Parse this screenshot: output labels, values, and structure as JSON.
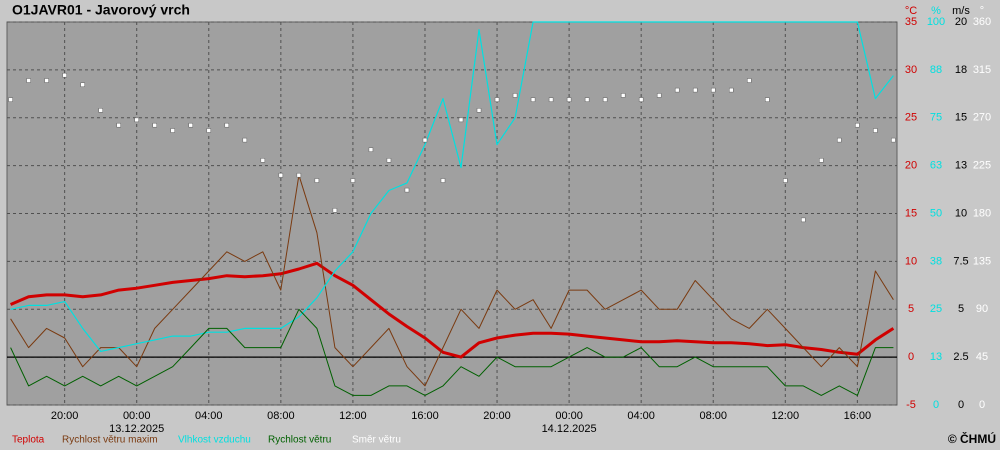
{
  "chart_data": {
    "type": "line",
    "title": "O1JAVR01 - Javorový vrch",
    "copyright": "© ČHMÚ",
    "x": [
      -7,
      -6,
      -5,
      -4,
      -3,
      -2,
      -1,
      0,
      1,
      2,
      3,
      4,
      5,
      6,
      7,
      8,
      9,
      10,
      11,
      12,
      13,
      14,
      15,
      16,
      17,
      18,
      19,
      20,
      21,
      22,
      23,
      24,
      25,
      26,
      27,
      28,
      29,
      30,
      31,
      32,
      33,
      34,
      35,
      36,
      37,
      38,
      39,
      40,
      41,
      42
    ],
    "xlim": [
      -7.2,
      42.2
    ],
    "xticks": [
      {
        "value": -4,
        "label": "20:00"
      },
      {
        "value": 0,
        "label": "00:00"
      },
      {
        "value": 4,
        "label": "04:00"
      },
      {
        "value": 8,
        "label": "08:00"
      },
      {
        "value": 12,
        "label": "12:00"
      },
      {
        "value": 16,
        "label": "16:00"
      },
      {
        "value": 20,
        "label": "20:00"
      },
      {
        "value": 24,
        "label": "00:00"
      },
      {
        "value": 28,
        "label": "04:00"
      },
      {
        "value": 32,
        "label": "08:00"
      },
      {
        "value": 36,
        "label": "12:00"
      },
      {
        "value": 40,
        "label": "16:00"
      }
    ],
    "date_labels": [
      {
        "value": 0,
        "label": "13.12.2025"
      },
      {
        "value": 24,
        "label": "14.12.2025"
      }
    ],
    "ylabel": "°C",
    "ylim": [
      -5,
      35
    ],
    "yticks": [
      35,
      30,
      25,
      20,
      15,
      10,
      5,
      0,
      -5
    ],
    "ycolor": "#d00000",
    "y2label": "%",
    "y2lim": [
      0,
      100
    ],
    "y2ticks": [
      100,
      {
        "value": 87.5,
        "label": "88"
      },
      75,
      {
        "value": 62.5,
        "label": "63"
      },
      50,
      {
        "value": 37.5,
        "label": "38"
      },
      25,
      {
        "value": 12.5,
        "label": "13"
      },
      0
    ],
    "y2color": "#00e0e0",
    "y3label": "m/s",
    "y3lim": [
      0,
      20
    ],
    "y3ticks": [
      20,
      {
        "value": 17.5,
        "label": "18"
      },
      15,
      {
        "value": 12.5,
        "label": "13"
      },
      10,
      7.5,
      5,
      2.5,
      0
    ],
    "y3color": "#000000",
    "y4label": "°",
    "y4lim": [
      0,
      360
    ],
    "y4ticks": [
      360,
      315,
      270,
      225,
      180,
      135,
      90,
      45,
      0
    ],
    "y4color": "#ffffff",
    "grid": true,
    "series": [
      {
        "name": "Teplota",
        "color": "#d00000",
        "axis": "y",
        "style": "line",
        "width": 3,
        "values": [
          5.5,
          6.3,
          6.5,
          6.5,
          6.3,
          6.5,
          7,
          7.2,
          7.5,
          7.8,
          8,
          8.2,
          8.5,
          8.4,
          8.5,
          8.7,
          9.2,
          9.8,
          8.5,
          7.5,
          6,
          4.5,
          3.2,
          2,
          0.5,
          0,
          1.5,
          2,
          2.3,
          2.5,
          2.5,
          2.4,
          2.2,
          2,
          1.8,
          1.6,
          1.6,
          1.7,
          1.6,
          1.5,
          1.5,
          1.4,
          1.2,
          1.3,
          1,
          0.8,
          0.5,
          0.3,
          1.8,
          3
        ]
      },
      {
        "name": "Rychlost větru maxim",
        "color": "#7a3a10",
        "axis": "y3",
        "style": "line",
        "width": 1,
        "values": [
          4.5,
          3,
          4,
          3.5,
          2,
          3,
          3,
          2,
          4,
          5,
          6,
          7,
          8,
          7.5,
          8,
          6,
          12,
          9,
          3,
          2,
          3,
          4,
          2,
          1,
          3,
          5,
          4,
          6,
          5,
          5.5,
          4,
          6,
          6,
          5,
          5.5,
          6,
          5,
          5,
          6.5,
          5.5,
          4.5,
          4,
          5,
          4,
          3,
          2,
          3,
          2,
          7,
          5.5
        ]
      },
      {
        "name": "Vlhkost vzduchu",
        "color": "#00e0e0",
        "axis": "y2",
        "style": "line",
        "width": 1.2,
        "values": [
          25,
          26,
          26,
          27,
          20,
          14,
          15,
          16,
          17,
          18,
          18,
          19,
          19,
          20,
          20,
          20,
          23,
          28,
          35,
          40,
          50,
          56,
          58,
          68,
          80,
          62,
          98,
          68,
          75,
          100,
          100,
          100,
          100,
          100,
          100,
          100,
          100,
          100,
          100,
          100,
          100,
          100,
          100,
          100,
          100,
          100,
          100,
          100,
          80,
          86
        ]
      },
      {
        "name": "Rychlost větru",
        "color": "#006000",
        "axis": "y3",
        "style": "line",
        "width": 1,
        "values": [
          3,
          1,
          1.5,
          1,
          1.5,
          1,
          1.5,
          1,
          1.5,
          2,
          3,
          4,
          4,
          3,
          3,
          3,
          5,
          4,
          1,
          0.5,
          0.5,
          1,
          1,
          0.5,
          1,
          2,
          1.5,
          2.5,
          2,
          2,
          2,
          2.5,
          3,
          2.5,
          2.5,
          3,
          2,
          2,
          2.5,
          2,
          2,
          2,
          2,
          1,
          1,
          0.5,
          1,
          0.5,
          3,
          3
        ]
      },
      {
        "name": "Směr větru",
        "color": "#ffffff",
        "axis": "y4",
        "style": "points",
        "width": 1,
        "values": [
          287,
          305,
          305,
          310,
          301,
          277,
          263,
          268,
          263,
          258,
          263,
          258,
          263,
          249,
          230,
          216,
          216,
          211,
          183,
          211,
          240,
          230,
          202,
          249,
          211,
          268,
          277,
          287,
          291,
          287,
          287,
          287,
          287,
          287,
          291,
          287,
          291,
          296,
          296,
          296,
          296,
          305,
          287,
          211,
          174,
          230,
          249,
          263,
          258,
          249
        ]
      }
    ]
  }
}
